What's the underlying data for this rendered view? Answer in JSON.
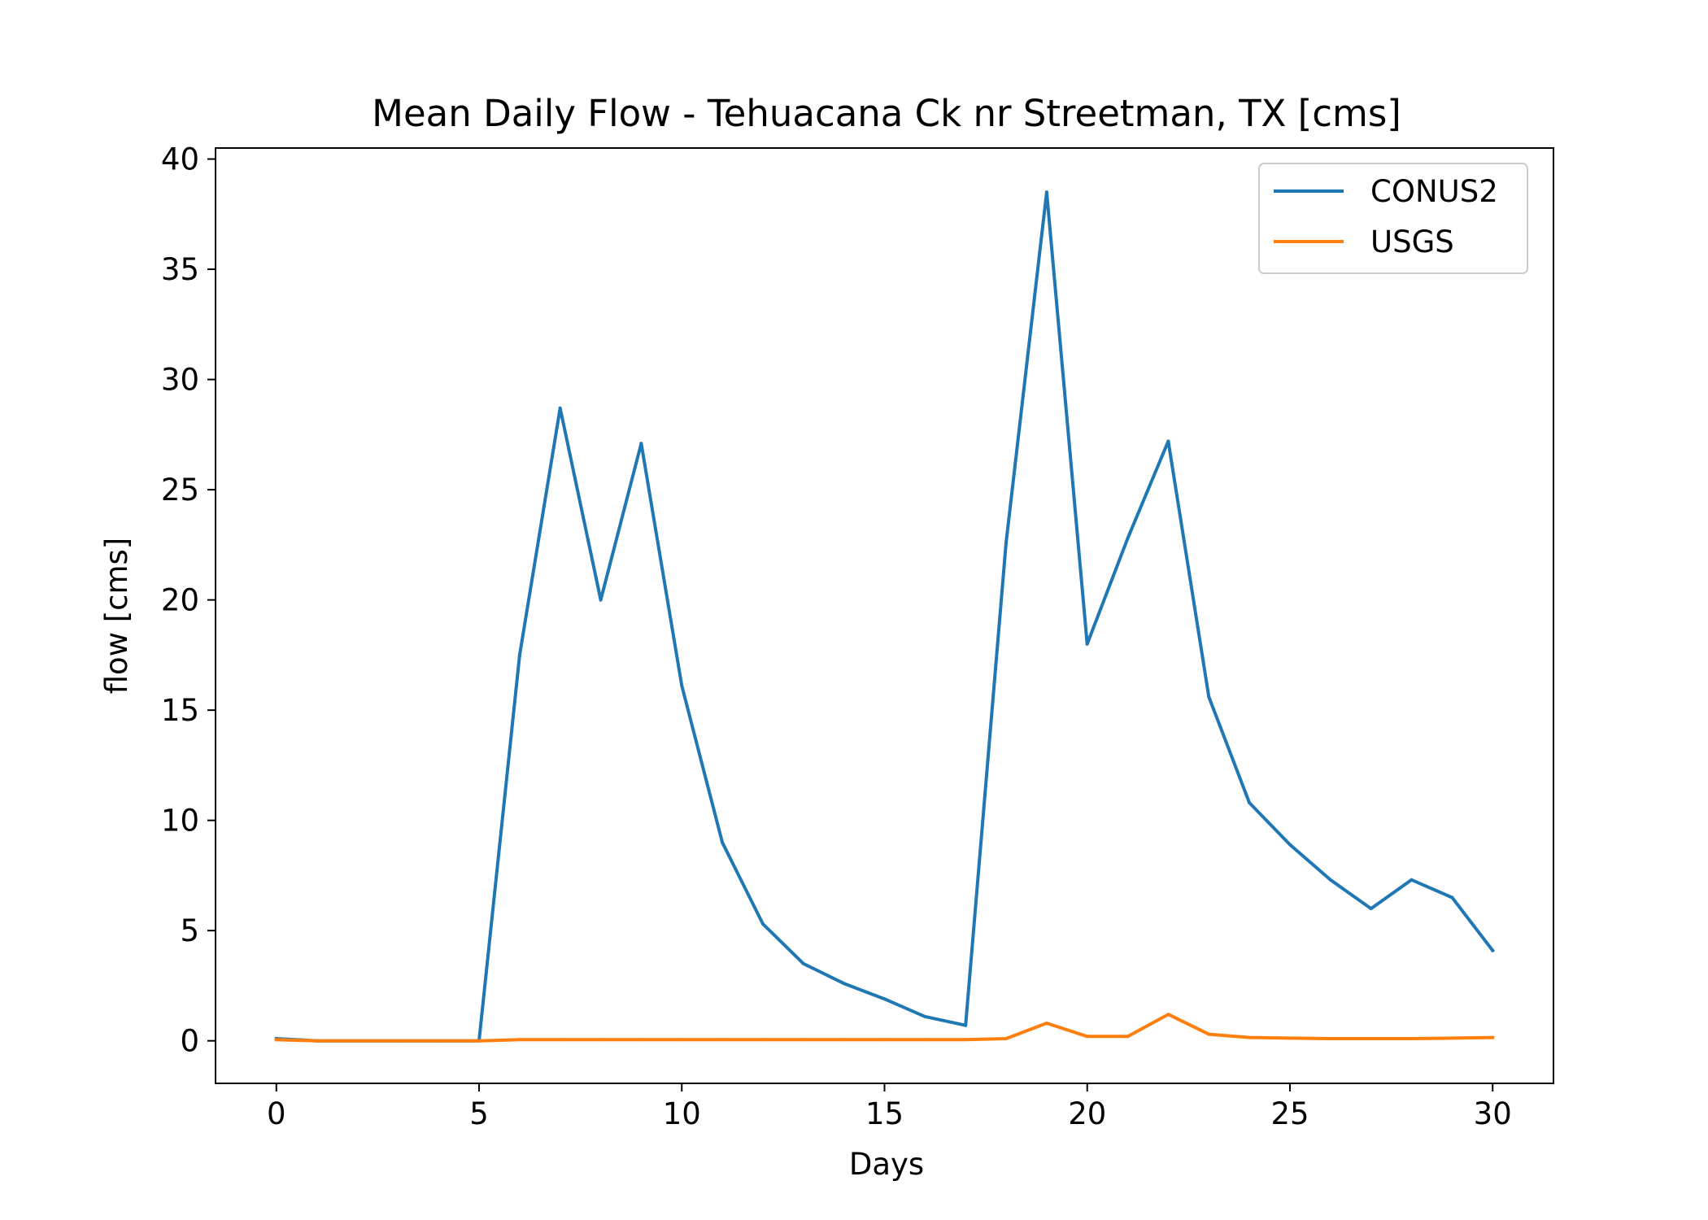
{
  "chart_data": {
    "type": "line",
    "title": "Mean Daily Flow - Tehuacana Ck nr Streetman, TX [cms]",
    "xlabel": "Days",
    "ylabel": "flow [cms]",
    "xlim": [
      -1.5,
      31.5
    ],
    "ylim": [
      -1.93,
      40.5
    ],
    "x_ticks": [
      0,
      5,
      10,
      15,
      20,
      25,
      30
    ],
    "y_ticks": [
      0,
      5,
      10,
      15,
      20,
      25,
      30,
      35,
      40
    ],
    "grid": false,
    "legend_position": "top-right",
    "x": [
      0,
      1,
      2,
      3,
      4,
      5,
      6,
      7,
      8,
      9,
      10,
      11,
      12,
      13,
      14,
      15,
      16,
      17,
      18,
      19,
      20,
      21,
      22,
      23,
      24,
      25,
      26,
      27,
      28,
      29,
      30
    ],
    "series": [
      {
        "name": "CONUS2",
        "color": "#1f77b4",
        "values": [
          0.1,
          0.0,
          0.0,
          0.0,
          0.0,
          0.0,
          17.5,
          28.7,
          20.0,
          27.1,
          16.1,
          9.0,
          5.3,
          3.5,
          2.6,
          1.9,
          1.1,
          0.7,
          22.6,
          38.5,
          18.0,
          22.8,
          27.2,
          15.6,
          10.8,
          8.9,
          7.3,
          6.0,
          7.3,
          6.5,
          4.1
        ]
      },
      {
        "name": "USGS",
        "color": "#ff7f0e",
        "values": [
          0.05,
          0.0,
          0.0,
          0.0,
          0.0,
          0.0,
          0.05,
          0.05,
          0.05,
          0.05,
          0.05,
          0.05,
          0.05,
          0.05,
          0.05,
          0.05,
          0.05,
          0.05,
          0.1,
          0.8,
          0.2,
          0.2,
          1.2,
          0.3,
          0.15,
          0.12,
          0.1,
          0.1,
          0.1,
          0.12,
          0.15
        ]
      }
    ]
  }
}
